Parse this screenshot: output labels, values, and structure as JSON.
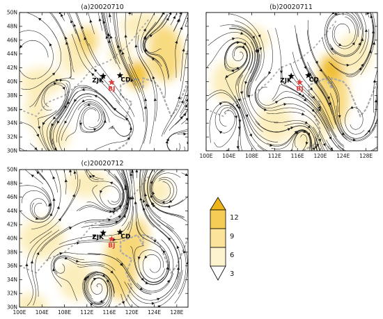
{
  "panels": [
    {
      "title": "(a)20020710",
      "xticks": [
        "100E",
        "104E",
        "108E",
        "112E",
        "116E",
        "120E",
        "124E",
        "128E"
      ],
      "yticks": [
        "30N",
        "32N",
        "34N",
        "36N",
        "38N",
        "40N",
        "42N",
        "44N",
        "46N",
        "48N",
        "50N"
      ],
      "show_xticks": false,
      "blobs": [
        [
          104,
          40,
          4,
          2,
          2
        ],
        [
          110,
          44,
          3,
          3,
          2
        ],
        [
          112,
          46,
          2,
          2,
          3
        ],
        [
          122,
          48,
          4,
          2,
          2
        ],
        [
          126,
          44,
          3,
          4,
          3
        ],
        [
          103,
          36,
          2,
          3,
          2
        ],
        [
          106,
          32,
          3,
          2,
          2
        ],
        [
          118,
          44,
          2,
          2,
          2
        ],
        [
          121,
          41,
          2,
          2,
          4
        ]
      ]
    },
    {
      "title": "(b)20020711",
      "xticks": [
        "100E",
        "104E",
        "108E",
        "112E",
        "116E",
        "120E",
        "124E",
        "128E"
      ],
      "yticks": [],
      "show_xticks": true,
      "blobs": [
        [
          122,
          38,
          3,
          5,
          3
        ],
        [
          122,
          42,
          2,
          2,
          4
        ],
        [
          126,
          44,
          3,
          3,
          2
        ],
        [
          108,
          46,
          3,
          2,
          2
        ],
        [
          104,
          40,
          3,
          3,
          2
        ],
        [
          112,
          34,
          3,
          3,
          2
        ],
        [
          118,
          32,
          3,
          2,
          2
        ]
      ]
    },
    {
      "title": "(c)20020712",
      "xticks": [
        "100E",
        "104E",
        "108E",
        "112E",
        "116E",
        "120E",
        "124E",
        "128E"
      ],
      "yticks": [
        "30N",
        "32N",
        "34N",
        "36N",
        "38N",
        "40N",
        "42N",
        "44N",
        "46N",
        "48N",
        "50N"
      ],
      "show_xticks": true,
      "blobs": [
        [
          104,
          40,
          4,
          3,
          2
        ],
        [
          118,
          36,
          3,
          5,
          3
        ],
        [
          121,
          40,
          2,
          3,
          3
        ],
        [
          112,
          48,
          4,
          2,
          2
        ],
        [
          124,
          47,
          3,
          2,
          2
        ],
        [
          110,
          34,
          3,
          3,
          2
        ],
        [
          102,
          30,
          3,
          2,
          2
        ]
      ]
    }
  ],
  "sites": [
    {
      "label": "ZJK",
      "lon": 114.9,
      "lat": 40.8,
      "color": "#000000",
      "marker": "star"
    },
    {
      "label": "CD",
      "lon": 117.9,
      "lat": 40.9,
      "color": "#000000",
      "marker": "star"
    },
    {
      "label": "BJ",
      "lon": 116.4,
      "lat": 39.9,
      "color": "#e23a3a",
      "marker": "star"
    }
  ],
  "colorbar": {
    "labels": [
      "12",
      "9",
      "6",
      "3"
    ],
    "colors": [
      "#ffffff",
      "#fdf3cf",
      "#fbe39a",
      "#f5cc55",
      "#eeb51a"
    ]
  },
  "colors": {
    "shade_light": "#fcebb0",
    "shade_mid": "#f7d46a",
    "shade_dark": "#efb822",
    "streamline": "#1a1a1a",
    "coast": "#aaaaaa"
  }
}
